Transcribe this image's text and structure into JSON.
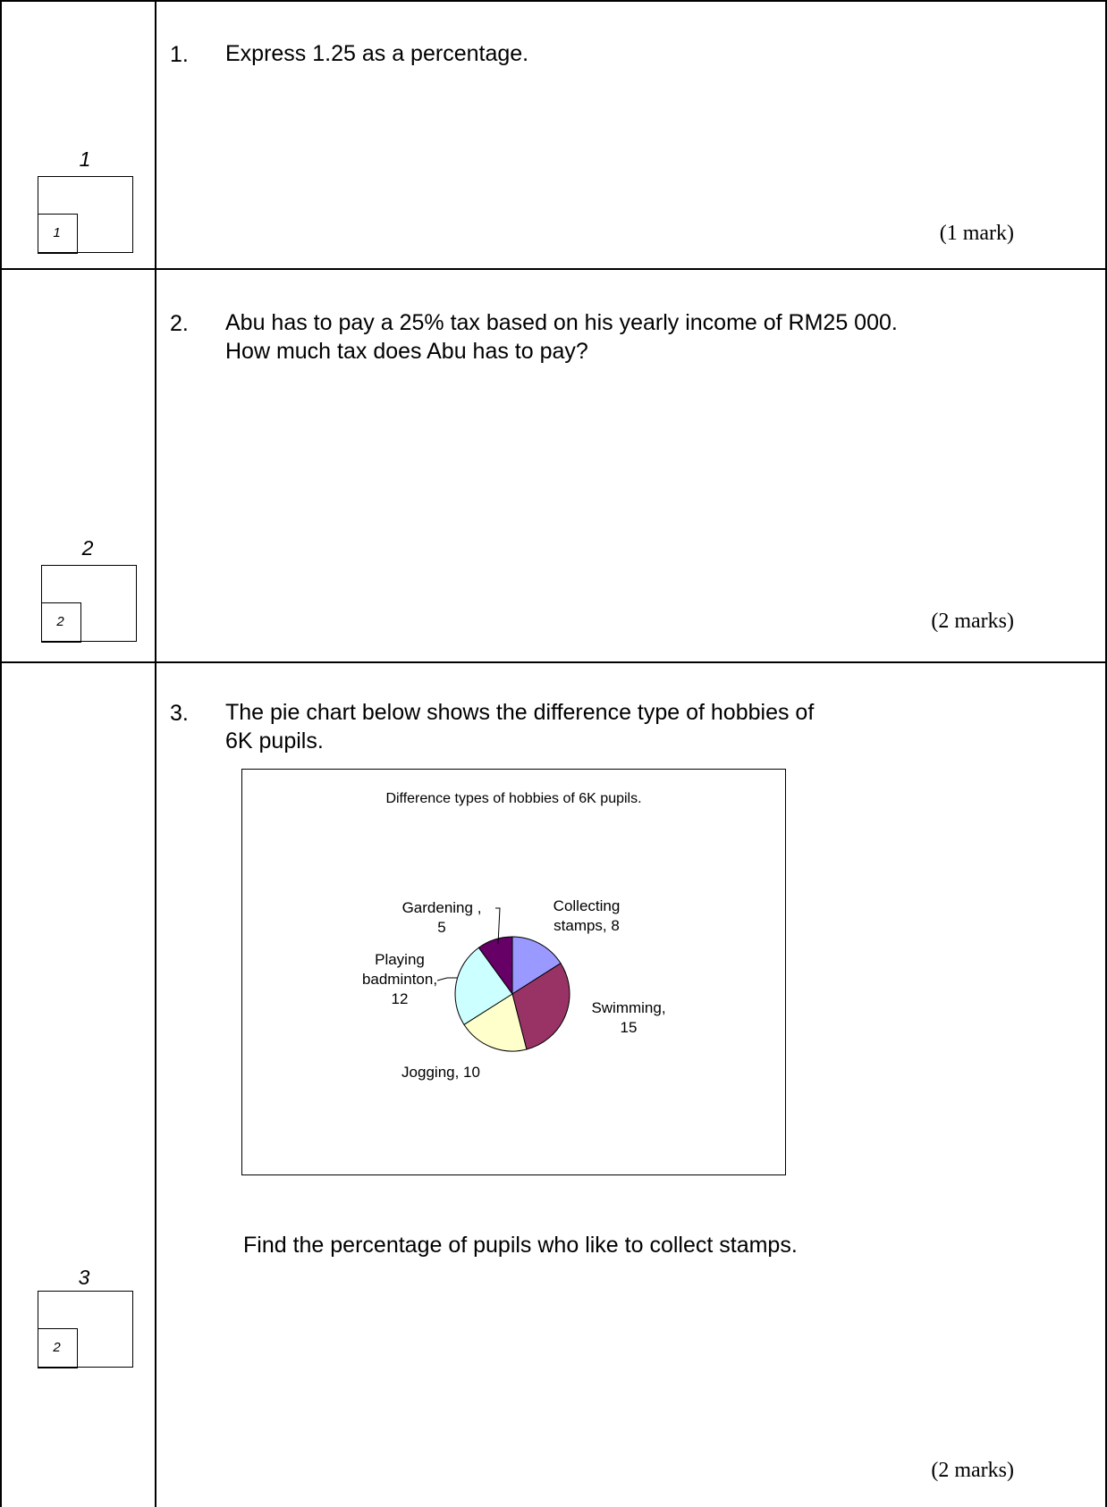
{
  "questions": [
    {
      "number": "1.",
      "lines": [
        "Express 1.25 as a percentage."
      ],
      "marks": "(1 mark)",
      "box_label": "1",
      "box_marks": "1"
    },
    {
      "number": "2.",
      "lines": [
        "Abu has to pay a 25% tax based on his yearly income of RM25 000.",
        "How much tax does Abu has to pay?"
      ],
      "marks": "(2 marks)",
      "box_label": "2",
      "box_marks": "2"
    },
    {
      "number": "3.",
      "lines": [
        "The pie chart below shows the difference type of hobbies of",
        "6K pupils."
      ],
      "follow_up": "Find the percentage of pupils who like to collect stamps.",
      "marks": "(2 marks)",
      "box_label": "3",
      "box_marks": "2"
    }
  ],
  "chart_data": {
    "type": "pie",
    "title": "Difference types of hobbies of 6K pupils.",
    "slices": [
      {
        "label": "Collecting stamps",
        "value": 8,
        "color": "#9999ff",
        "label_lines": [
          "Collecting",
          "stamps,  8"
        ]
      },
      {
        "label": "Swimming",
        "value": 15,
        "color": "#993366",
        "label_lines": [
          "Swimming,",
          "15"
        ]
      },
      {
        "label": "Jogging",
        "value": 10,
        "color": "#ffffcc",
        "label_lines": [
          "Jogging, 10"
        ]
      },
      {
        "label": "Playing badminton",
        "value": 12,
        "color": "#ccffff",
        "label_lines": [
          "Playing",
          "badminton,",
          "12"
        ]
      },
      {
        "label": "Gardening",
        "value": 5,
        "color": "#660066",
        "label_lines": [
          "Gardening ,",
          "5"
        ]
      }
    ]
  }
}
